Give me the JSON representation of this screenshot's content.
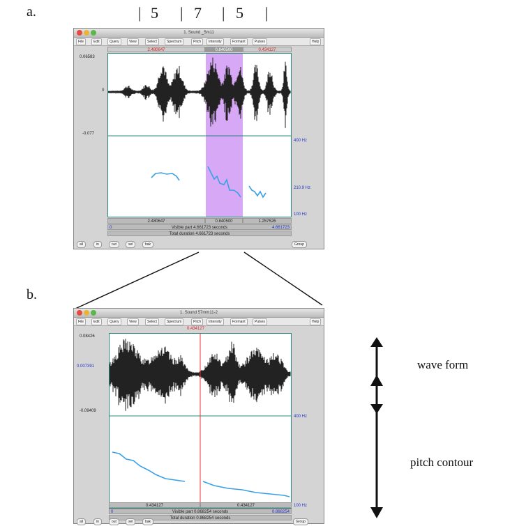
{
  "labels": {
    "a": "a.",
    "b": "b."
  },
  "tone_marks": {
    "t1": "5",
    "t2": "7",
    "t3": "5"
  },
  "menu_items": [
    "File",
    "Edit",
    "Query",
    "View",
    "Select",
    "Spectrum",
    "Pitch",
    "Intensity",
    "Formant",
    "Pulses",
    "Help"
  ],
  "bottom_buttons": [
    "all",
    "in",
    "out",
    "sel",
    "bak"
  ],
  "group_label": "Group",
  "window_a": {
    "title": "1. Sound _5m11",
    "sel_start": "2.480647",
    "sel_len": "0.840500",
    "sel_end": "0.434127",
    "y_max": "0.06583",
    "y_zero": "0",
    "y_min": "-0.077",
    "hz_top": "400 Hz",
    "hz_mid": "210.9 Hz",
    "hz_bot": "100 Hz",
    "bottom_left": "2.480647",
    "bottom_mid": "0.840500",
    "bottom_right": "1.257526",
    "visible_start": "0",
    "visible_text": "Visible part 4.661723 seconds",
    "visible_end": "4.661723",
    "total_text": "Total duration 4.661723 seconds"
  },
  "window_b": {
    "title": "1. Sound 57mm11-2",
    "cursor": "0.434127",
    "y_max": "0.08426",
    "y_mid": "0.007391",
    "y_min": "-0.09409",
    "hz_top": "400 Hz",
    "hz_bot": "100 Hz",
    "bottom_left": "0.434127",
    "bottom_right": "0.434127",
    "visible_start": "0",
    "visible_text": "Visible part 0.868254 seconds",
    "visible_end": "0.868254",
    "total_text": "Total duration 0.868254 seconds"
  },
  "annotations": {
    "wave": "wave form",
    "pitch": "pitch contour"
  },
  "colors": {
    "selection": "#d7a8f5",
    "pitch": "#3aa0e6",
    "cursor": "#ee3333",
    "wave": "#222222"
  }
}
